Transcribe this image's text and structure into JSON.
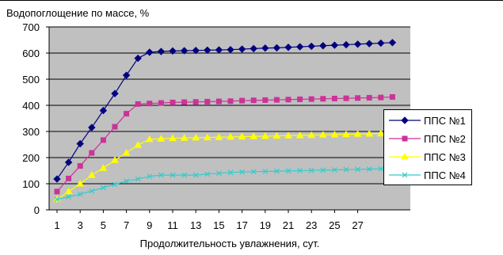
{
  "chart_data": {
    "type": "line",
    "title": "",
    "ylabel": "Водопоглощение по массе, %",
    "xlabel": "Продолжительность увлажнения, сут.",
    "ylim": [
      0,
      700
    ],
    "yticks": [
      "0",
      "100",
      "200",
      "300",
      "400",
      "500",
      "600",
      "700"
    ],
    "xticks": [
      "1",
      "3",
      "5",
      "7",
      "9",
      "11",
      "13",
      "15",
      "17",
      "19",
      "21",
      "23",
      "25",
      "27"
    ],
    "x": [
      1,
      2,
      3,
      4,
      5,
      6,
      7,
      8,
      9,
      10,
      11,
      12,
      13,
      14,
      15,
      16,
      17,
      18,
      19,
      20,
      21,
      22,
      23,
      24,
      25,
      26,
      27,
      28,
      29,
      30
    ],
    "grid": true,
    "legend_position": "right",
    "plot_background": "#c0c0c0",
    "series": [
      {
        "name": "ППС №1",
        "color": "#000080",
        "marker": "diamond",
        "values": [
          118,
          182,
          253,
          315,
          380,
          445,
          515,
          580,
          603,
          606,
          608,
          609,
          610,
          611,
          612,
          613,
          615,
          617,
          619,
          620,
          622,
          624,
          626,
          628,
          630,
          632,
          634,
          636,
          638,
          640
        ]
      },
      {
        "name": "ППС №2",
        "color": "#cc3399",
        "marker": "square",
        "values": [
          70,
          120,
          168,
          218,
          267,
          318,
          368,
          405,
          407,
          409,
          411,
          412,
          413,
          414,
          415,
          416,
          418,
          419,
          420,
          421,
          422,
          423,
          424,
          425,
          426,
          427,
          428,
          429,
          430,
          432
        ]
      },
      {
        "name": "ППС №3",
        "color": "#ffff00",
        "marker": "triangle",
        "values": [
          40,
          70,
          100,
          133,
          160,
          190,
          218,
          248,
          270,
          272,
          274,
          275,
          276,
          277,
          278,
          279,
          280,
          281,
          282,
          283,
          284,
          285,
          286,
          287,
          288,
          289,
          290,
          291,
          292,
          293
        ]
      },
      {
        "name": "ППС №4",
        "color": "#33cccc",
        "marker": "x",
        "values": [
          40,
          50,
          60,
          72,
          85,
          97,
          110,
          118,
          128,
          133,
          133,
          133,
          133,
          137,
          140,
          143,
          145,
          146,
          147,
          148,
          149,
          150,
          151,
          152,
          153,
          154,
          155,
          156,
          157,
          158
        ]
      }
    ]
  }
}
